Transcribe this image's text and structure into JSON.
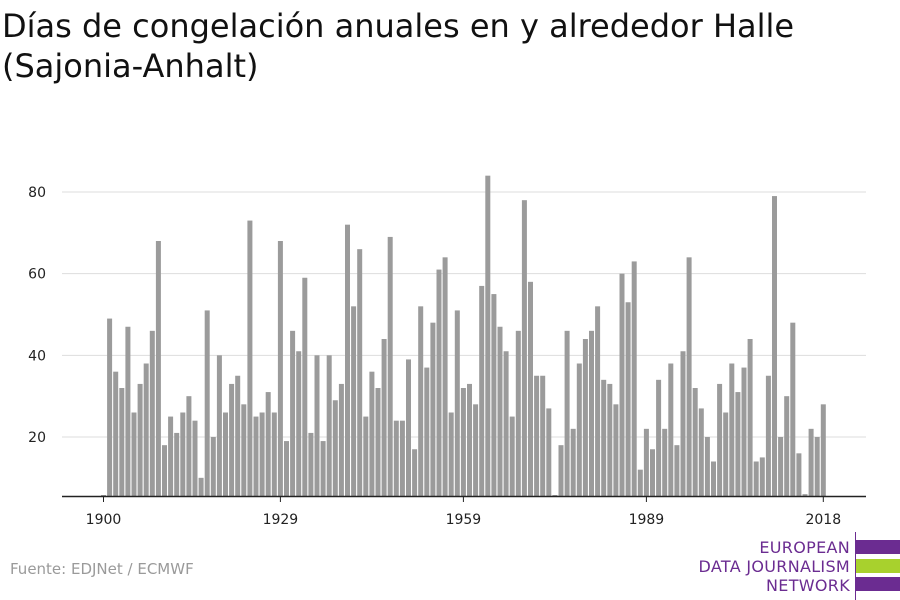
{
  "chart_data": {
    "type": "bar",
    "title": "Días de congelación anuales en y alrededor Halle (Sajonia-Anhalt)",
    "xlabel": "",
    "ylabel": "",
    "x_start": 1900,
    "x": [
      1900,
      1901,
      1902,
      1903,
      1904,
      1905,
      1906,
      1907,
      1908,
      1909,
      1910,
      1911,
      1912,
      1913,
      1914,
      1915,
      1916,
      1917,
      1918,
      1919,
      1920,
      1921,
      1922,
      1923,
      1924,
      1925,
      1926,
      1927,
      1928,
      1929,
      1930,
      1931,
      1932,
      1933,
      1934,
      1935,
      1936,
      1937,
      1938,
      1939,
      1940,
      1941,
      1942,
      1943,
      1944,
      1945,
      1946,
      1947,
      1948,
      1949,
      1950,
      1951,
      1952,
      1953,
      1954,
      1955,
      1956,
      1957,
      1958,
      1959,
      1960,
      1961,
      1962,
      1963,
      1964,
      1965,
      1966,
      1967,
      1968,
      1969,
      1970,
      1971,
      1972,
      1973,
      1974,
      1975,
      1976,
      1977,
      1978,
      1979,
      1980,
      1981,
      1982,
      1983,
      1984,
      1985,
      1986,
      1987,
      1988,
      1989,
      1990,
      1991,
      1992,
      1993,
      1994,
      1995,
      1996,
      1997,
      1998,
      1999,
      2000,
      2001,
      2002,
      2003,
      2004,
      2005,
      2006,
      2007,
      2008,
      2009,
      2010,
      2011,
      2012,
      2013,
      2014,
      2015,
      2016,
      2017,
      2018
    ],
    "values": [
      4,
      49,
      36,
      32,
      47,
      26,
      33,
      38,
      46,
      68,
      18,
      25,
      21,
      26,
      30,
      24,
      10,
      51,
      20,
      40,
      26,
      33,
      35,
      28,
      73,
      25,
      26,
      31,
      26,
      68,
      19,
      46,
      41,
      59,
      21,
      40,
      19,
      40,
      29,
      33,
      72,
      52,
      66,
      25,
      36,
      32,
      44,
      69,
      24,
      24,
      39,
      17,
      52,
      37,
      48,
      61,
      64,
      26,
      51,
      32,
      33,
      28,
      57,
      84,
      55,
      47,
      41,
      25,
      46,
      78,
      58,
      35,
      35,
      27,
      5,
      18,
      46,
      22,
      38,
      44,
      46,
      52,
      34,
      33,
      28,
      60,
      53,
      63,
      12,
      22,
      17,
      34,
      22,
      38,
      18,
      41,
      64,
      32,
      27,
      20,
      14,
      33,
      26,
      38,
      31,
      37,
      44,
      14,
      15,
      35,
      79,
      20,
      30,
      48,
      16,
      6,
      22,
      20,
      28
    ],
    "xticks": [
      "1900",
      "1929",
      "1959",
      "1989",
      "2018"
    ],
    "yticks": [
      "20",
      "40",
      "60",
      "80"
    ],
    "ylim": [
      6,
      88
    ],
    "grid": true,
    "colors": {
      "bar": "#9b9b9b",
      "grid": "#dddddd",
      "axis": "#222222"
    }
  },
  "footer": {
    "source": "Fuente: EDJNet / ECMWF"
  },
  "logo": {
    "line1": "EUROPEAN",
    "line2": "DATA JOURNALISM",
    "line3": "NETWORK",
    "purple": "#6b2c91",
    "green": "#a8d12d"
  }
}
